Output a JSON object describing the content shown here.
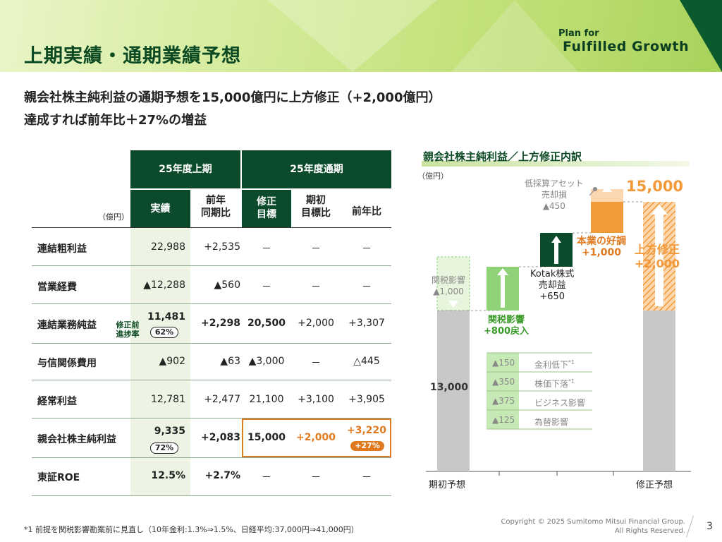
{
  "header": {
    "title": "上期実績・通期業績予想",
    "logo_line1": "Plan for",
    "logo_line2": "Fulfilled Growth"
  },
  "headline": {
    "line1": "親会社株主純利益の通期予想を15,000億円に上方修正（+2,000億円）",
    "line2": "達成すれば前年比＋27%の増益"
  },
  "table": {
    "unit": "（億円）",
    "group_h1": "25年度上期",
    "group_h2": "25年度通期",
    "col_actual": "実績",
    "col_yoy_l1": "前年",
    "col_yoy_l2": "同期比",
    "col_revised_l1": "修正",
    "col_revised_l2": "目標",
    "col_initial_l1": "期初",
    "col_initial_l2": "目標比",
    "col_prev": "前年比",
    "rows": [
      {
        "label": "連結粗利益",
        "actual": "22,988",
        "yoy": "+2,535",
        "revised": "－",
        "initial": "－",
        "prev": "－"
      },
      {
        "label": "営業経費",
        "actual": "▲12,288",
        "yoy": "▲560",
        "revised": "－",
        "initial": "－",
        "prev": "－"
      },
      {
        "label": "連結業務純益",
        "actual": "11,481",
        "yoy": "+2,298",
        "revised": "20,500",
        "initial": "+2,000",
        "prev": "+3,307",
        "note1": "修正前",
        "note2": "進捗率",
        "pill": "62%"
      },
      {
        "label": "与信関係費用",
        "actual": "▲902",
        "yoy": "▲63",
        "revised": "▲3,000",
        "initial": "－",
        "prev": "△445"
      },
      {
        "label": "経常利益",
        "actual": "12,781",
        "yoy": "+2,477",
        "revised": "21,100",
        "initial": "+3,100",
        "prev": "+3,905"
      },
      {
        "label": "親会社株主純利益",
        "actual": "9,335",
        "yoy": "+2,083",
        "revised": "15,000",
        "initial": "+2,000",
        "prev": "+3,220",
        "pill": "72%",
        "prev_pill": "+27%"
      },
      {
        "label": "東証ROE",
        "actual": "12.5%",
        "yoy": "+2.7%",
        "revised": "－",
        "initial": "－",
        "prev": "－"
      }
    ]
  },
  "chart": {
    "title": "親会社株主純利益／上方修正内訳",
    "unit": "（億円）",
    "start_label": "期初予想",
    "start_value": "13,000",
    "end_label": "修正予想",
    "end_value": "15,000",
    "tax_label_l1": "関税影響",
    "tax_label_l2": "▲1,000",
    "tax_back_l1": "関税影響",
    "tax_back_l2": "+800戻入",
    "kotak_l1": "Kotak株式",
    "kotak_l2": "売却益",
    "kotak_l3": "+650",
    "core_l1": "本業の好調",
    "core_l2": "+1,000",
    "asset_l1": "低採算アセット",
    "asset_l2": "売却損",
    "asset_l3": "▲450",
    "upward_l1": "上方修正",
    "upward_l2": "+2,000",
    "breakdown": [
      {
        "value": "▲150",
        "label": "金利低下",
        "sup": "*1"
      },
      {
        "value": "▲350",
        "label": "株価下落",
        "sup": "*1"
      },
      {
        "value": "▲375",
        "label": "ビジネス影響",
        "sup": ""
      },
      {
        "value": "▲125",
        "label": "為替影響",
        "sup": ""
      }
    ],
    "colors": {
      "gray": "#c8c8c8",
      "green_light": "#8fd27a",
      "green_dark": "#0b4a2a",
      "orange": "#f29a3a"
    }
  },
  "footer": {
    "footnote": "*1 前提を関税影響勘案前に見直し（10年金利:1.3%⇒1.5%、日経平均:37,000円⇒41,000円）",
    "copyright1": "Copyright © 2025 Sumitomo Mitsui Financial Group.",
    "copyright2": "All Rights Reserved.",
    "page": "3"
  }
}
